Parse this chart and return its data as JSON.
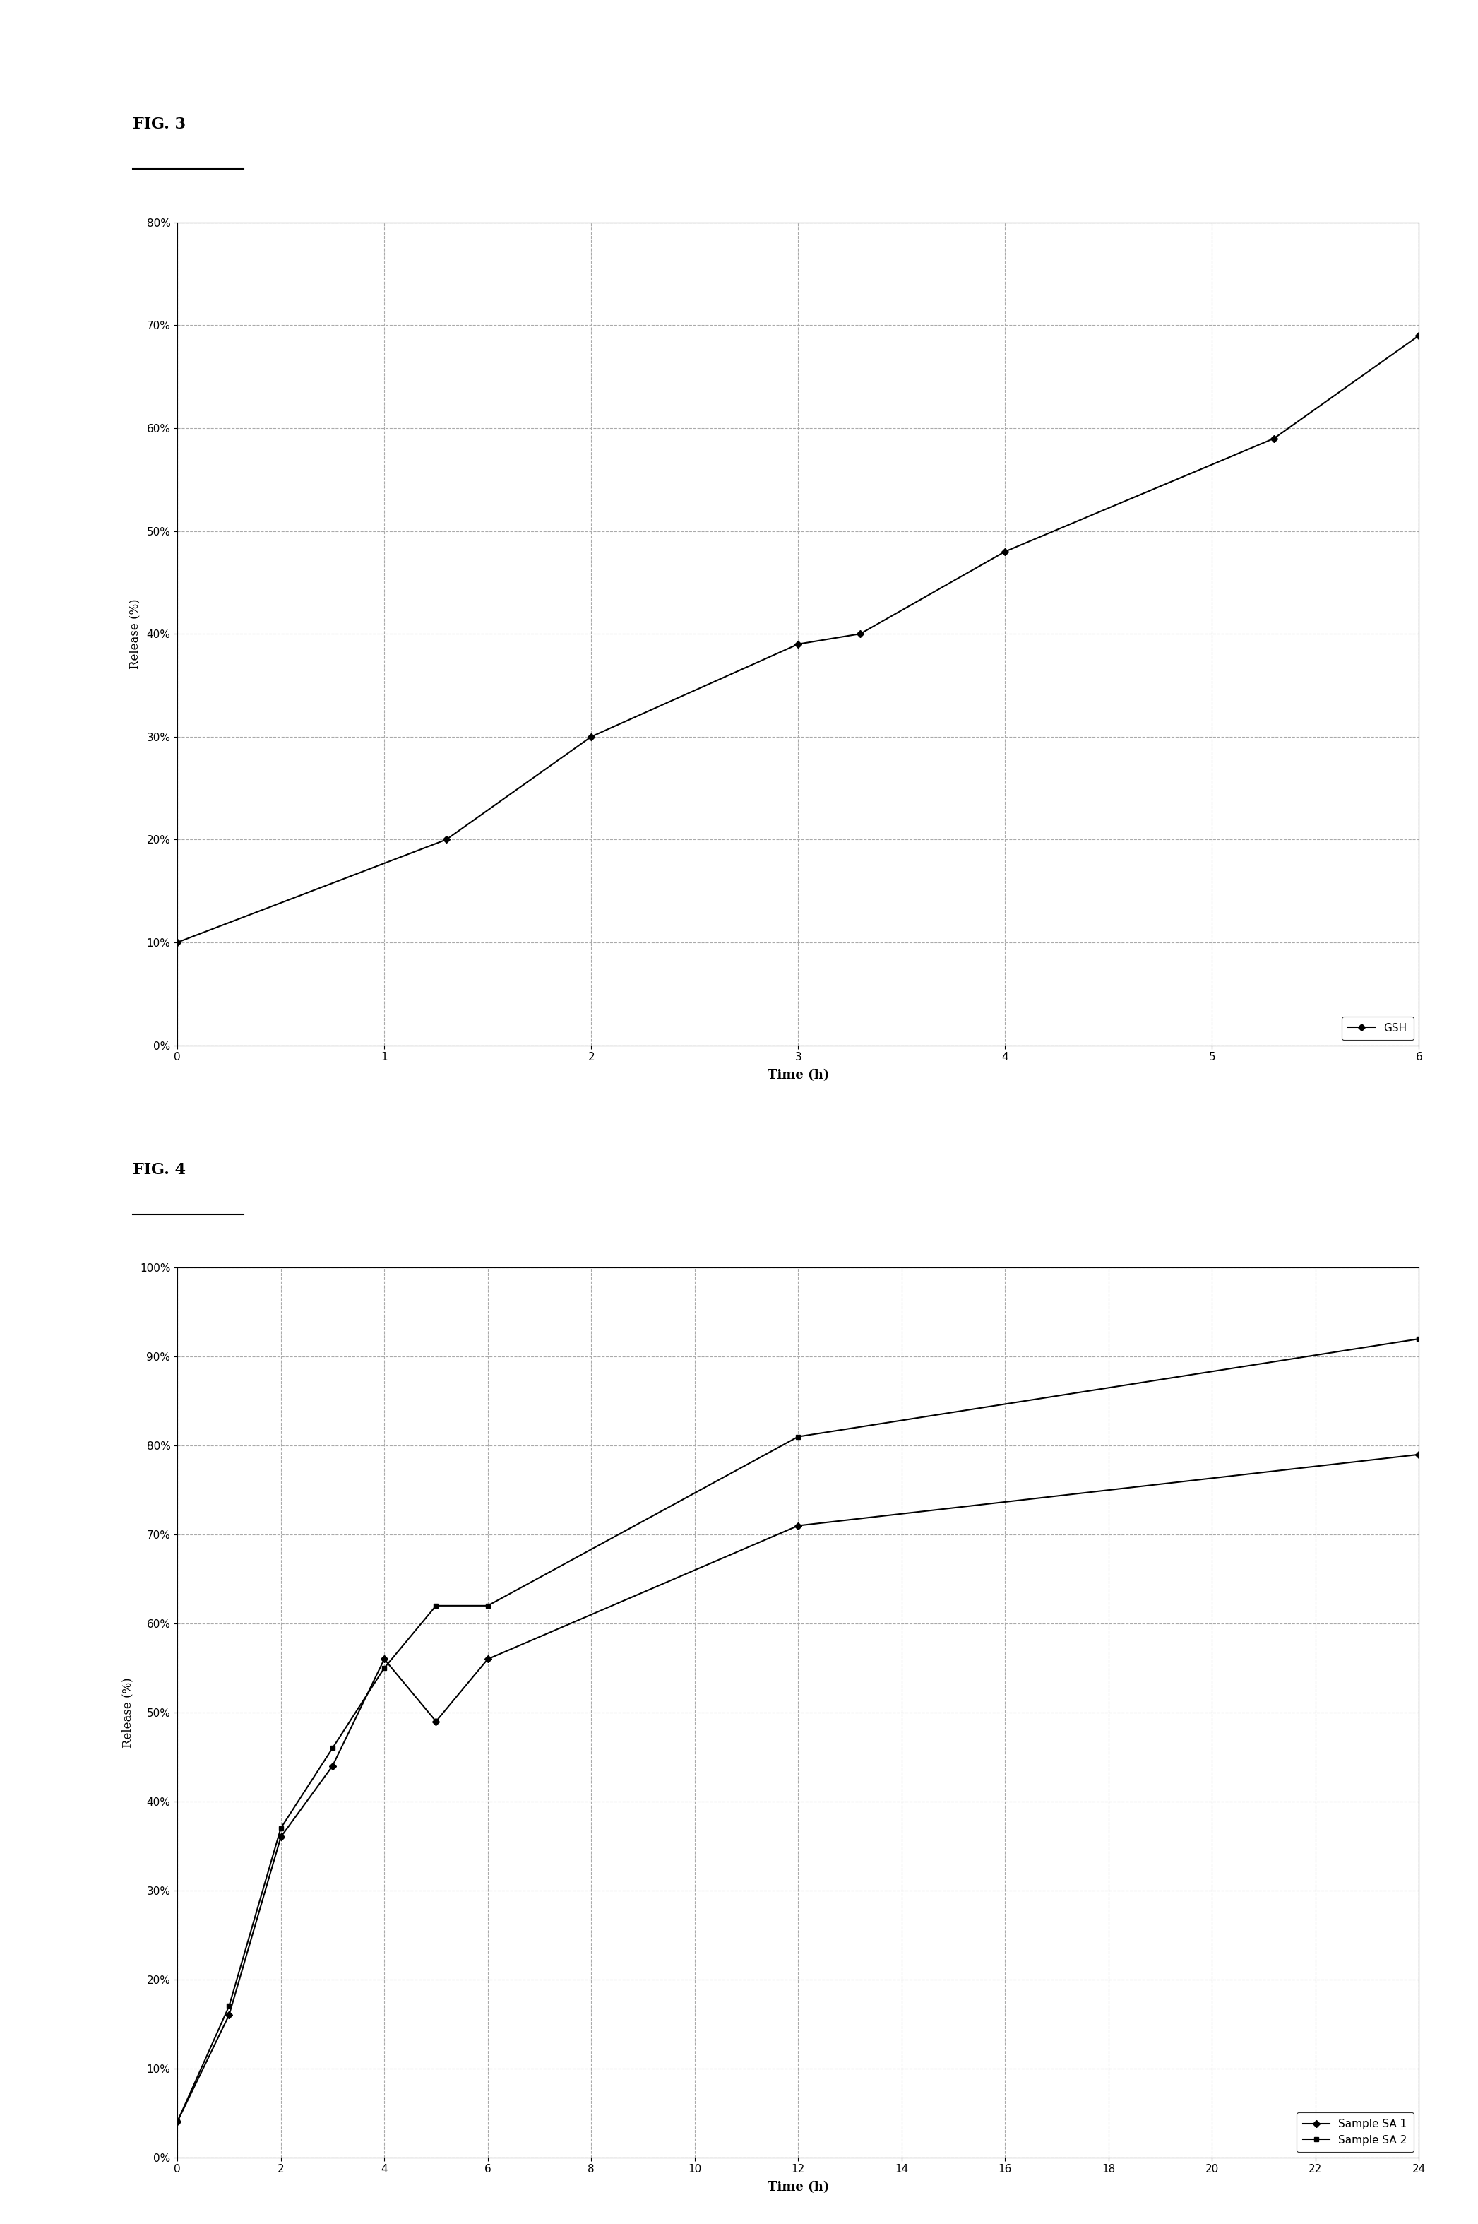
{
  "fig3": {
    "title": "FIG. 3",
    "x": [
      0,
      1.3,
      2,
      3,
      3.3,
      4,
      5.3,
      6
    ],
    "y_gsh": [
      10,
      20,
      30,
      39,
      40,
      48,
      59,
      69
    ],
    "xlabel": "Time (h)",
    "ylabel": "Release (%)",
    "legend_label": "GSH",
    "xlim": [
      0,
      6
    ],
    "ylim": [
      0,
      80
    ],
    "yticks": [
      0,
      10,
      20,
      30,
      40,
      50,
      60,
      70,
      80
    ],
    "xticks": [
      0,
      1,
      2,
      3,
      4,
      5,
      6
    ],
    "line_color": "#000000",
    "marker": "D",
    "markersize": 5,
    "linewidth": 1.5
  },
  "fig4": {
    "title": "FIG. 4",
    "x": [
      0,
      1,
      2,
      3,
      4,
      5,
      6,
      12,
      24
    ],
    "y_sa1": [
      4,
      16,
      36,
      44,
      56,
      49,
      56,
      71,
      79
    ],
    "y_sa2": [
      4,
      17,
      37,
      46,
      55,
      62,
      62,
      81,
      92
    ],
    "xlabel": "Time (h)",
    "ylabel": "Release (%)",
    "legend_sa1": "Sample SA 1",
    "legend_sa2": "Sample SA 2",
    "xlim": [
      0,
      24
    ],
    "ylim": [
      0,
      100
    ],
    "yticks": [
      0,
      10,
      20,
      30,
      40,
      50,
      60,
      70,
      80,
      90,
      100
    ],
    "xticks": [
      0,
      2,
      4,
      6,
      8,
      10,
      12,
      14,
      16,
      18,
      20,
      22,
      24
    ],
    "sa1_color": "#000000",
    "sa2_color": "#000000",
    "sa1_marker": "D",
    "sa2_marker": "s",
    "markersize": 5,
    "linewidth": 1.5
  },
  "page_bg": "#ffffff",
  "font_color": "#000000",
  "grid_color": "#aaaaaa",
  "grid_style": "--",
  "box_bg": "#ffffff"
}
